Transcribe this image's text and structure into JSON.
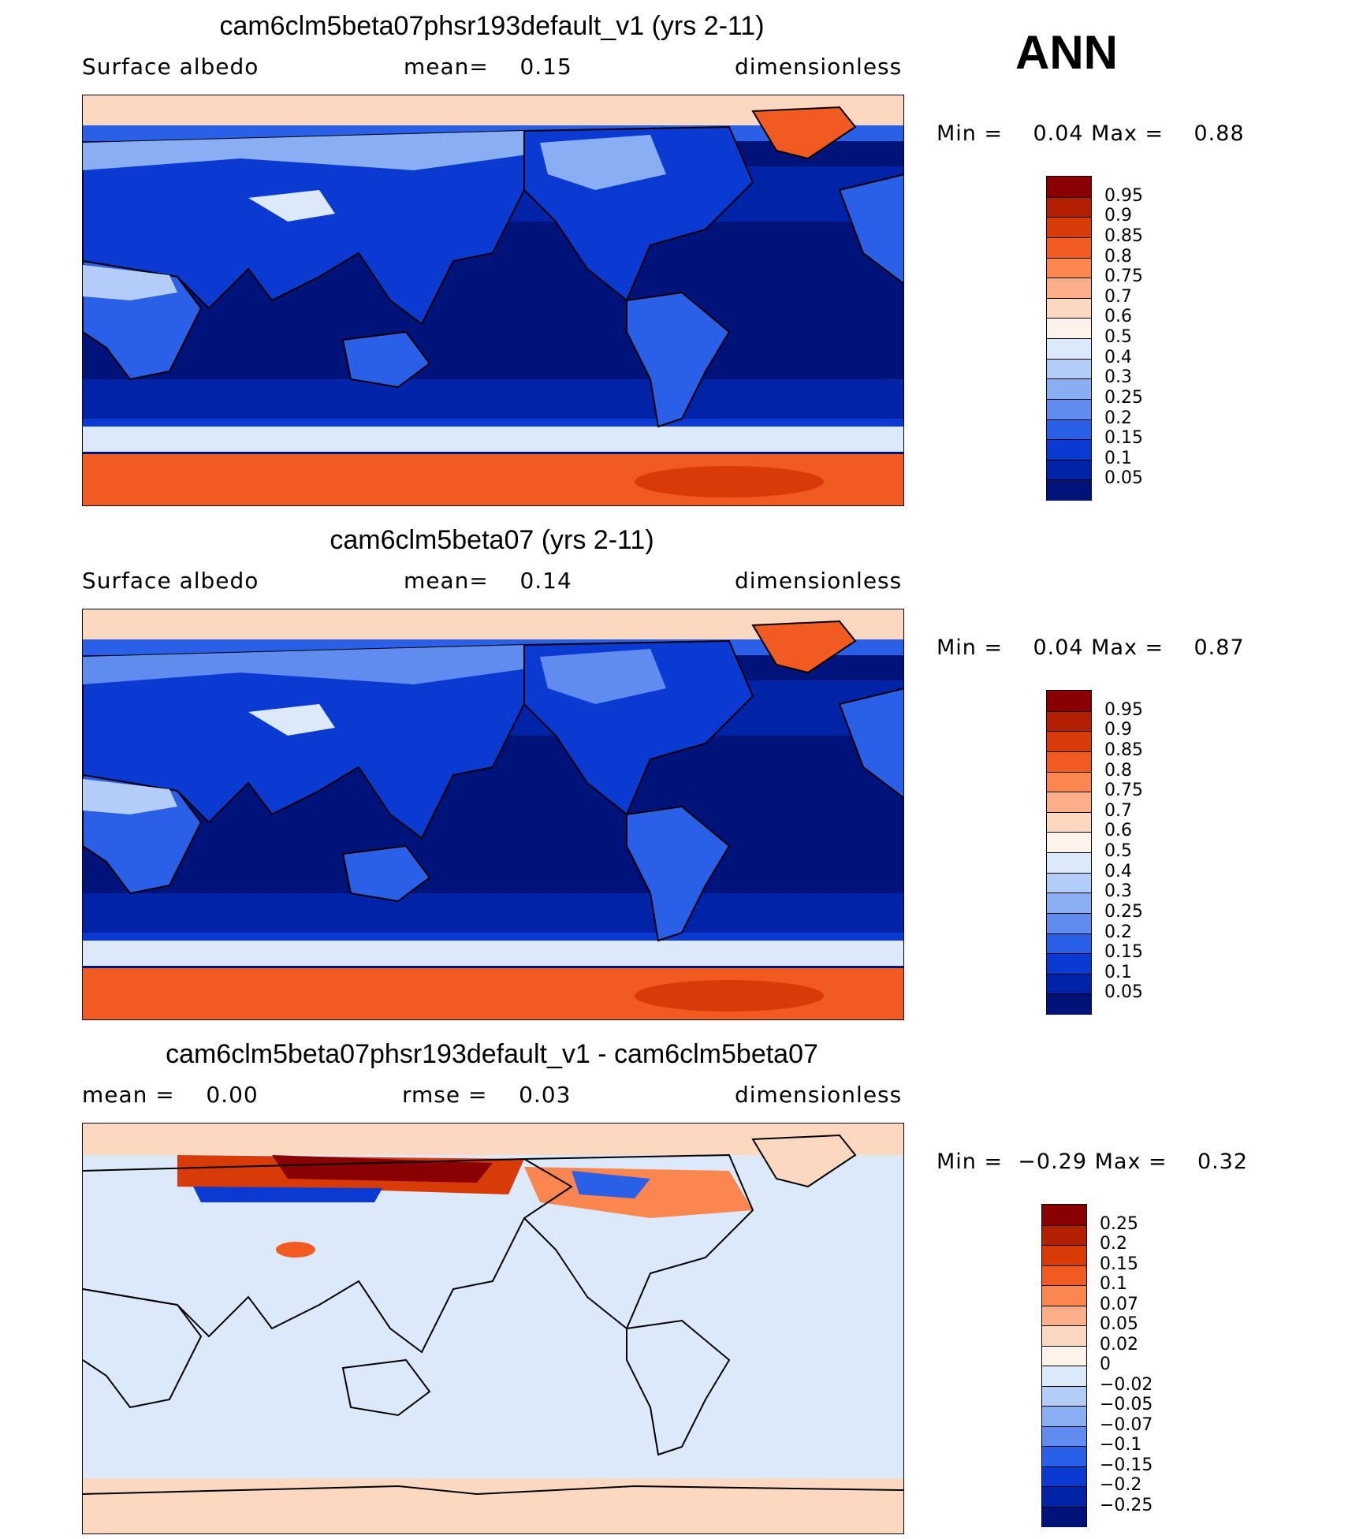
{
  "season_label": "ANN",
  "panels": [
    {
      "title": "cam6clm5beta07phsr193default_v1 (yrs 2-11)",
      "left_label": "Surface albedo",
      "center_label": "mean=    0.15",
      "right_label": "dimensionless",
      "minmax": "Min =    0.04 Max =    0.88",
      "kind": "abs",
      "colorbar_labels": [
        "0.95",
        "0.9",
        "0.85",
        "0.8",
        "0.75",
        "0.7",
        "0.6",
        "0.5",
        "0.4",
        "0.3",
        "0.25",
        "0.2",
        "0.15",
        "0.1",
        "0.05"
      ]
    },
    {
      "title": "cam6clm5beta07 (yrs 2-11)",
      "left_label": "Surface albedo",
      "center_label": "mean=    0.14",
      "right_label": "dimensionless",
      "minmax": "Min =    0.04 Max =    0.87",
      "kind": "abs",
      "colorbar_labels": [
        "0.95",
        "0.9",
        "0.85",
        "0.8",
        "0.75",
        "0.7",
        "0.6",
        "0.5",
        "0.4",
        "0.3",
        "0.25",
        "0.2",
        "0.15",
        "0.1",
        "0.05"
      ]
    },
    {
      "title": "cam6clm5beta07phsr193default_v1 - cam6clm5beta07",
      "left_label": "mean =    0.00",
      "center_label": "rmse =    0.03",
      "right_label": "dimensionless",
      "minmax": "Min =  −0.29 Max =    0.32",
      "kind": "diff",
      "colorbar_labels": [
        "0.25",
        "0.2",
        "0.15",
        "0.1",
        "0.07",
        "0.05",
        "0.02",
        "0",
        "−0.02",
        "−0.05",
        "−0.07",
        "−0.1",
        "−0.15",
        "−0.2",
        "−0.25"
      ]
    }
  ],
  "colors": {
    "abs": [
      "#8a0000",
      "#b22000",
      "#d83a08",
      "#f15b22",
      "#fb8650",
      "#fcae88",
      "#fdd8c0",
      "#fef3ea",
      "#dbe9fb",
      "#b4cdf8",
      "#8aaef4",
      "#5f8cee",
      "#2a5fe8",
      "#0a3ad2",
      "#0023a8",
      "#00137a"
    ],
    "diff": [
      "#8a0000",
      "#b22000",
      "#d83a08",
      "#f15b22",
      "#fb8650",
      "#fcae88",
      "#fdd8c0",
      "#fef3ea",
      "#dbe9fb",
      "#b4cdf8",
      "#8aaef4",
      "#5f8cee",
      "#2a5fe8",
      "#0a3ad2",
      "#0023a8",
      "#00137a"
    ]
  }
}
